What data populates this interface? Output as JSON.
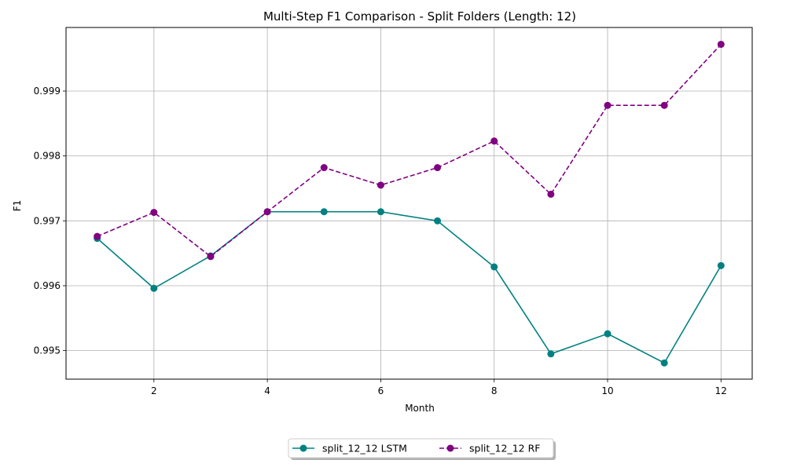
{
  "chart_data": {
    "type": "line",
    "title": "Multi-Step F1 Comparison - Split Folders (Length: 12)",
    "xlabel": "Month",
    "ylabel": "F1",
    "x": [
      1,
      2,
      3,
      4,
      5,
      6,
      7,
      8,
      9,
      10,
      11,
      12
    ],
    "xlim": [
      0.45,
      12.55
    ],
    "ylim": [
      0.99456,
      0.99998
    ],
    "xticks": [
      2,
      4,
      6,
      8,
      10,
      12
    ],
    "yticks": [
      0.995,
      0.996,
      0.997,
      0.998,
      0.999
    ],
    "ytick_labels": [
      "0.995",
      "0.996",
      "0.997",
      "0.998",
      "0.999"
    ],
    "grid": true,
    "legend_position": "bottom-center, outside plot",
    "series": [
      {
        "name": "split_12_12 LSTM",
        "color": "#008080",
        "line_style": "solid",
        "marker": "circle",
        "values": [
          0.99673,
          0.99596,
          0.99646,
          0.99714,
          0.99714,
          0.99714,
          0.997,
          0.99629,
          0.99495,
          0.99526,
          0.99481,
          0.99631
        ]
      },
      {
        "name": "split_12_12 RF",
        "color": "#800080",
        "line_style": "dashed",
        "marker": "circle",
        "values": [
          0.99676,
          0.99713,
          0.99645,
          0.99714,
          0.99782,
          0.99755,
          0.99782,
          0.99823,
          0.99741,
          0.99878,
          0.99878,
          0.99972
        ]
      }
    ]
  }
}
